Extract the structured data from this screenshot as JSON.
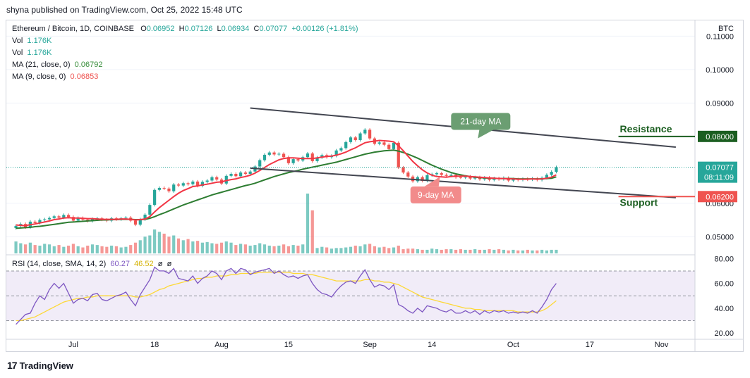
{
  "header": {
    "published": "shyna published on TradingView.com, Oct 25, 2022 15:48 UTC"
  },
  "legend": {
    "symbol": "Ethereum / Bitcoin, 1D, COINBASE",
    "o_label": "O",
    "o": "0.06952",
    "h_label": "H",
    "h": "0.07126",
    "l_label": "L",
    "l": "0.06934",
    "c_label": "C",
    "c": "0.07077",
    "chg": "+0.00126 (+1.81%)",
    "vol1_label": "Vol",
    "vol1": "1.176K",
    "vol2_label": "Vol",
    "vol2": "1.176K",
    "ma21_label": "MA (21, close, 0)",
    "ma21": "0.06792",
    "ma9_label": "MA (9, close, 0)",
    "ma9": "0.06853",
    "rsi_label": "RSI (14, close, SMA, 14, 2)",
    "rsi": "60.27",
    "rsi_sma": "46.52",
    "rsi_x1": "ø",
    "rsi_x2": "ø"
  },
  "annotations": {
    "ma21_tag": "21-day MA",
    "ma9_tag": "9-day MA",
    "resistance": "Resistance",
    "support": "Support",
    "resistance_price": "0.08000",
    "support_price": "0.06200",
    "last_price": "0.07077",
    "countdown": "08:11:09"
  },
  "footer": {
    "brand": "TradingView"
  },
  "colors": {
    "up": "#26a69a",
    "down": "#ef5350",
    "ma9": "#f23645",
    "ma21": "#2e7d32",
    "rsi": "#7e57c2",
    "rsi_sma": "#fdd835",
    "channel": "#434651",
    "label_green": "#1b5e20"
  },
  "chart_data": [
    {
      "type": "candlestick",
      "currency": "BTC",
      "y_ticks": [
        "0.11000",
        "0.10000",
        "0.09000",
        "0.06000",
        "0.05000"
      ],
      "ylim": [
        0.045,
        0.1145
      ],
      "x_ticks": [
        {
          "label": "Jul",
          "day": 0
        },
        {
          "label": "18",
          "day": 17
        },
        {
          "label": "Aug",
          "day": 31
        },
        {
          "label": "15",
          "day": 45
        },
        {
          "label": "Sep",
          "day": 62
        },
        {
          "label": "14",
          "day": 75
        },
        {
          "label": "Oct",
          "day": 92
        },
        {
          "label": "17",
          "day": 108
        },
        {
          "label": "Nov",
          "day": 123
        }
      ],
      "x_range": [
        -14,
        130
      ],
      "close": [
        0.0532,
        0.0538,
        0.0528,
        0.0545,
        0.0541,
        0.055,
        0.0552,
        0.0556,
        0.0561,
        0.0557,
        0.0565,
        0.0559,
        0.0548,
        0.0556,
        0.0551,
        0.0547,
        0.0553,
        0.0555,
        0.0551,
        0.0548,
        0.0555,
        0.0552,
        0.0555,
        0.0557,
        0.0548,
        0.0536,
        0.0552,
        0.0566,
        0.0595,
        0.064,
        0.0646,
        0.0644,
        0.0636,
        0.0656,
        0.0653,
        0.066,
        0.0657,
        0.0665,
        0.0652,
        0.0664,
        0.0668,
        0.0678,
        0.0671,
        0.0659,
        0.0682,
        0.0688,
        0.0681,
        0.0692,
        0.0688,
        0.0695,
        0.071,
        0.0729,
        0.0745,
        0.0752,
        0.0746,
        0.0748,
        0.0738,
        0.072,
        0.0732,
        0.0728,
        0.0738,
        0.0749,
        0.0726,
        0.0737,
        0.0744,
        0.0738,
        0.0742,
        0.0758,
        0.0765,
        0.0783,
        0.0797,
        0.0789,
        0.0809,
        0.082,
        0.0794,
        0.0778,
        0.0782,
        0.0775,
        0.0762,
        0.0781,
        0.0707,
        0.0692,
        0.068,
        0.0666,
        0.0678,
        0.0667,
        0.0684,
        0.0687,
        0.069,
        0.0685,
        0.0682,
        0.0685,
        0.0678,
        0.0677,
        0.068,
        0.0674,
        0.0678,
        0.0672,
        0.0677,
        0.067,
        0.0675,
        0.0672,
        0.0676,
        0.0668,
        0.0672,
        0.067,
        0.0673,
        0.0671,
        0.0674,
        0.067,
        0.0676,
        0.0685,
        0.0694,
        0.0708
      ],
      "ma9": [
        0.0535,
        0.0534,
        0.0533,
        0.0536,
        0.0538,
        0.0541,
        0.0544,
        0.0547,
        0.0551,
        0.0553,
        0.0556,
        0.0557,
        0.0556,
        0.0556,
        0.0555,
        0.0554,
        0.0554,
        0.0553,
        0.0552,
        0.0552,
        0.0552,
        0.0552,
        0.0553,
        0.0553,
        0.0552,
        0.055,
        0.0551,
        0.0553,
        0.056,
        0.0574,
        0.0587,
        0.0598,
        0.0609,
        0.062,
        0.063,
        0.0638,
        0.0644,
        0.065,
        0.0652,
        0.0655,
        0.0657,
        0.066,
        0.0663,
        0.0664,
        0.0668,
        0.0671,
        0.0673,
        0.0677,
        0.068,
        0.0684,
        0.069,
        0.0698,
        0.0707,
        0.0716,
        0.0723,
        0.073,
        0.0734,
        0.0736,
        0.0736,
        0.0735,
        0.0734,
        0.0734,
        0.0734,
        0.0736,
        0.0738,
        0.074,
        0.0741,
        0.0744,
        0.0748,
        0.0753,
        0.076,
        0.0766,
        0.0774,
        0.0781,
        0.0784,
        0.0786,
        0.0788,
        0.0787,
        0.0786,
        0.0784,
        0.0772,
        0.0757,
        0.0741,
        0.0725,
        0.0712,
        0.07,
        0.0691,
        0.0684,
        0.068,
        0.0679,
        0.0678,
        0.068,
        0.0681,
        0.0681,
        0.0681,
        0.068,
        0.0679,
        0.0678,
        0.0677,
        0.0676,
        0.0675,
        0.0674,
        0.0674,
        0.0673,
        0.0673,
        0.0672,
        0.0672,
        0.0672,
        0.0673,
        0.0672,
        0.0673,
        0.0675,
        0.0678,
        0.0685
      ],
      "ma21": [
        0.0525,
        0.0526,
        0.0527,
        0.0528,
        0.053,
        0.0531,
        0.0533,
        0.0535,
        0.0537,
        0.0539,
        0.0541,
        0.0543,
        0.0544,
        0.0545,
        0.0546,
        0.0547,
        0.0548,
        0.0549,
        0.055,
        0.055,
        0.0551,
        0.0551,
        0.0552,
        0.0552,
        0.0552,
        0.0551,
        0.0551,
        0.0552,
        0.0555,
        0.056,
        0.0566,
        0.0571,
        0.0577,
        0.0583,
        0.0589,
        0.0595,
        0.06,
        0.0605,
        0.061,
        0.0615,
        0.062,
        0.0625,
        0.0629,
        0.0633,
        0.0637,
        0.0641,
        0.0645,
        0.0649,
        0.0653,
        0.0656,
        0.066,
        0.0665,
        0.067,
        0.0675,
        0.068,
        0.0684,
        0.0688,
        0.0692,
        0.0695,
        0.0698,
        0.0702,
        0.0705,
        0.0708,
        0.0711,
        0.0714,
        0.0717,
        0.072,
        0.0723,
        0.0727,
        0.0731,
        0.0735,
        0.0739,
        0.0743,
        0.0747,
        0.075,
        0.0753,
        0.0755,
        0.0757,
        0.0758,
        0.0759,
        0.0756,
        0.0752,
        0.0747,
        0.0741,
        0.0735,
        0.0728,
        0.0721,
        0.0714,
        0.0708,
        0.0702,
        0.0697,
        0.0692,
        0.0688,
        0.0685,
        0.0682,
        0.068,
        0.0678,
        0.0677,
        0.0676,
        0.0675,
        0.0675,
        0.0674,
        0.0674,
        0.0674,
        0.0674,
        0.0673,
        0.0673,
        0.0673,
        0.0673,
        0.0673,
        0.0673,
        0.0674,
        0.0675,
        0.0679
      ],
      "volume": [
        0.2,
        0.17,
        0.15,
        0.18,
        0.14,
        0.13,
        0.16,
        0.15,
        0.12,
        0.14,
        0.11,
        0.13,
        0.16,
        0.12,
        0.1,
        0.13,
        0.15,
        0.14,
        0.12,
        0.11,
        0.13,
        0.12,
        0.1,
        0.11,
        0.14,
        0.18,
        0.22,
        0.28,
        0.3,
        0.4,
        0.36,
        0.33,
        0.28,
        0.3,
        0.25,
        0.22,
        0.24,
        0.2,
        0.21,
        0.18,
        0.19,
        0.17,
        0.16,
        0.18,
        0.2,
        0.18,
        0.14,
        0.16,
        0.15,
        0.13,
        0.14,
        0.17,
        0.15,
        0.13,
        0.12,
        0.13,
        0.15,
        0.12,
        0.14,
        0.13,
        0.15,
        1.0,
        0.72,
        0.09,
        0.11,
        0.1,
        0.08,
        0.09,
        0.09,
        0.1,
        0.11,
        0.13,
        0.12,
        0.15,
        0.16,
        0.12,
        0.1,
        0.11,
        0.09,
        0.1,
        0.13,
        0.07,
        0.08,
        0.08,
        0.07,
        0.06,
        0.06,
        0.08,
        0.07,
        0.06,
        0.07,
        0.07,
        0.06,
        0.07,
        0.06,
        0.06,
        0.07,
        0.06,
        0.06,
        0.07,
        0.06,
        0.07,
        0.06,
        0.05,
        0.06,
        0.05,
        0.05,
        0.06,
        0.05,
        0.05,
        0.06,
        0.05,
        0.06,
        0.06
      ]
    },
    {
      "type": "line",
      "title": "RSI (14, close, SMA, 14, 2)",
      "y_ticks": [
        80.0,
        60.0,
        40.0,
        20.0
      ],
      "ylim": [
        15,
        83
      ],
      "bands": [
        30,
        70
      ],
      "rsi": [
        27,
        31,
        35,
        36,
        44,
        50,
        47,
        55,
        60,
        56,
        60,
        52,
        44,
        47,
        48,
        46,
        51,
        52,
        47,
        46,
        48,
        50,
        51,
        53,
        47,
        42,
        51,
        57,
        63,
        73,
        70,
        70,
        68,
        72,
        64,
        63,
        62,
        66,
        60,
        64,
        66,
        70,
        68,
        63,
        70,
        72,
        68,
        72,
        71,
        67,
        69,
        70,
        71,
        72,
        68,
        70,
        67,
        65,
        66,
        64,
        66,
        67,
        60,
        55,
        52,
        51,
        49,
        54,
        58,
        61,
        62,
        60,
        66,
        71,
        63,
        57,
        59,
        58,
        55,
        59,
        43,
        41,
        38,
        36,
        40,
        37,
        42,
        41,
        40,
        38,
        37,
        39,
        36,
        36,
        38,
        36,
        38,
        35,
        38,
        36,
        38,
        37,
        38,
        36,
        37,
        36,
        37,
        36,
        38,
        36,
        41,
        47,
        55,
        60
      ],
      "sma": [
        30,
        30,
        31,
        32,
        33,
        35,
        37,
        39,
        41,
        43,
        45,
        46,
        47,
        48,
        48,
        49,
        49,
        50,
        50,
        50,
        50,
        50,
        50,
        50,
        50,
        49,
        49,
        50,
        51,
        53,
        55,
        56,
        58,
        59,
        60,
        61,
        62,
        63,
        64,
        64,
        65,
        65,
        66,
        66,
        66,
        67,
        67,
        68,
        68,
        68,
        68,
        69,
        69,
        69,
        69,
        69,
        69,
        69,
        68,
        68,
        68,
        67,
        67,
        66,
        65,
        64,
        63,
        62,
        62,
        62,
        62,
        62,
        62,
        63,
        63,
        62,
        62,
        61,
        61,
        60,
        59,
        57,
        55,
        53,
        51,
        49,
        48,
        47,
        46,
        45,
        44,
        43,
        42,
        41,
        40,
        40,
        39,
        39,
        38,
        38,
        38,
        38,
        38,
        38,
        38,
        37,
        37,
        37,
        37,
        37,
        38,
        40,
        43,
        46
      ]
    }
  ]
}
